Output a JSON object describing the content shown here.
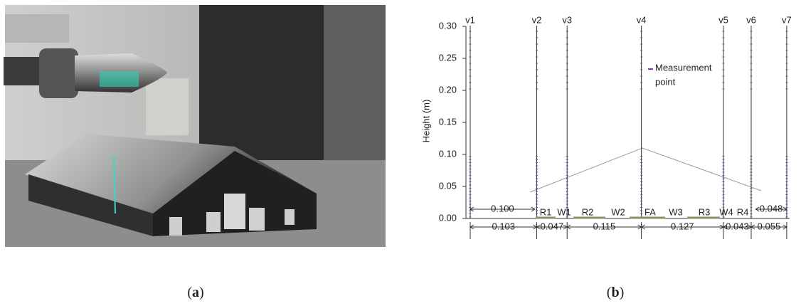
{
  "figure": {
    "panel_a": {
      "caption": {
        "open": "(",
        "letter": "a",
        "close": ")"
      }
    },
    "panel_b": {
      "caption": {
        "open": "(",
        "letter": "b",
        "close": ")"
      },
      "y_axis": {
        "label": "Height (m)",
        "lim": [
          0,
          0.3
        ],
        "ticks": [
          {
            "value": 0,
            "label": "0.00"
          },
          0.05,
          {
            "value": 0.1,
            "label": "0.10"
          },
          0.15,
          {
            "value": 0.2,
            "label": "0.20"
          },
          0.25,
          {
            "value": 0.3,
            "label": "0.30"
          }
        ]
      },
      "profiles": [
        "v1",
        "v2",
        "v3",
        "v4",
        "v5",
        "v6",
        "v7"
      ],
      "spacings": [
        0.103,
        0.047,
        0.115,
        0.127,
        0.043,
        0.055
      ],
      "upper_dims": [
        {
          "value": 0.1,
          "label": "0.100"
        },
        0.048
      ],
      "segments": [
        "R1",
        "W1",
        "R2",
        "W2",
        "FA",
        "W3",
        "R3",
        "W4",
        "R4"
      ],
      "legend": {
        "lines": [
          "Measurement",
          "point"
        ]
      }
    }
  }
}
